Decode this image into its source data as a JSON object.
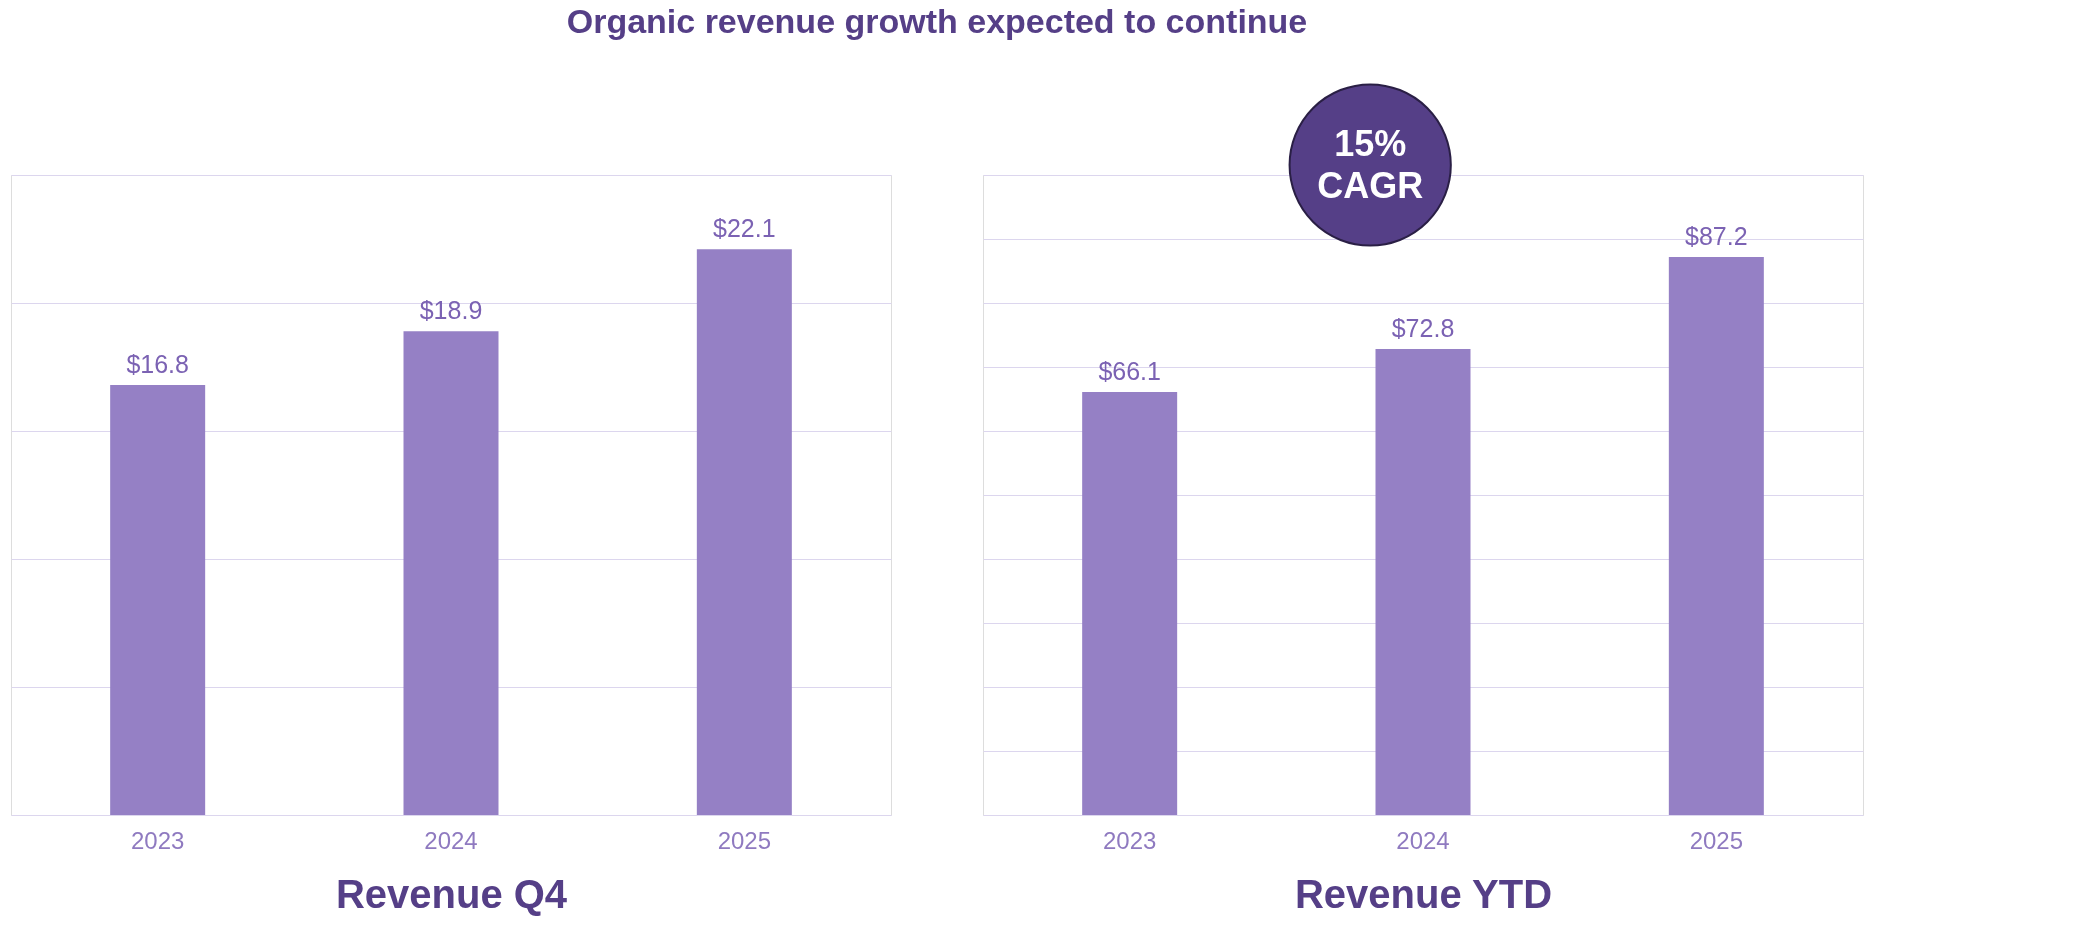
{
  "chart_data": [
    {
      "type": "bar",
      "title": "Organic revenue growth expected to continue",
      "xlabel": "Revenue Q4",
      "categories": [
        "2023",
        "2024",
        "2025"
      ],
      "values": [
        16.8,
        18.9,
        22.1
      ],
      "value_labels": [
        "$16.8",
        "$18.9",
        "$22.1"
      ],
      "color": "#9580c5",
      "ylim": [
        0,
        25
      ],
      "yticks": [
        {
          "value": 0,
          "label": null
        },
        {
          "value": 5,
          "label": null
        },
        {
          "value": 10,
          "label": null
        },
        {
          "value": 15,
          "label": null
        },
        {
          "value": 20,
          "label": null
        },
        {
          "value": 25,
          "label": null
        }
      ],
      "grid": "y",
      "tick_labels": "x"
    },
    {
      "type": "bar",
      "xlabel": "Revenue YTD",
      "categories": [
        "2023",
        "2024",
        "2025"
      ],
      "values": [
        66.1,
        72.8,
        87.2
      ],
      "value_labels": [
        "$66.1",
        "$72.8",
        "$87.2"
      ],
      "color": "#9580c5",
      "ylim": [
        0,
        100
      ],
      "yticks": [
        {
          "value": 0,
          "label": null
        },
        {
          "value": 10,
          "label": null
        },
        {
          "value": 20,
          "label": null
        },
        {
          "value": 30,
          "label": null
        },
        {
          "value": 40,
          "label": null
        },
        {
          "value": 50,
          "label": null
        },
        {
          "value": 60,
          "label": null
        },
        {
          "value": 70,
          "label": null
        },
        {
          "value": 80,
          "label": null
        },
        {
          "value": 90,
          "label": null
        },
        {
          "value": 100,
          "label": null
        }
      ],
      "grid": "y",
      "tick_labels": "x",
      "annotations": [
        "15% CAGR"
      ]
    }
  ]
}
